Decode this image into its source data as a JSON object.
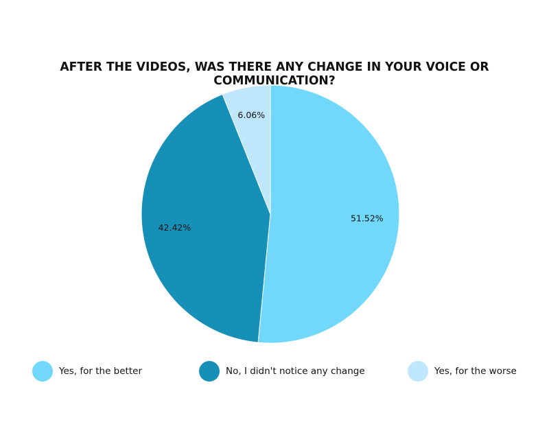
{
  "chart_data": {
    "type": "pie",
    "title": "AFTER THE VIDEOS, WAS THERE ANY CHANGE IN YOUR VOICE OR COMMUNICATION?",
    "legend_position": "bottom",
    "slices": [
      {
        "label": "Yes, for the better",
        "value": 51.52,
        "display": "51.52%",
        "color": "#72d8fb"
      },
      {
        "label": "No, I didn't notice any change",
        "value": 42.42,
        "display": "42.42%",
        "color": "#1790b8"
      },
      {
        "label": "Yes, for the worse",
        "value": 6.06,
        "display": "6.06%",
        "color": "#bfe7fb"
      }
    ]
  }
}
